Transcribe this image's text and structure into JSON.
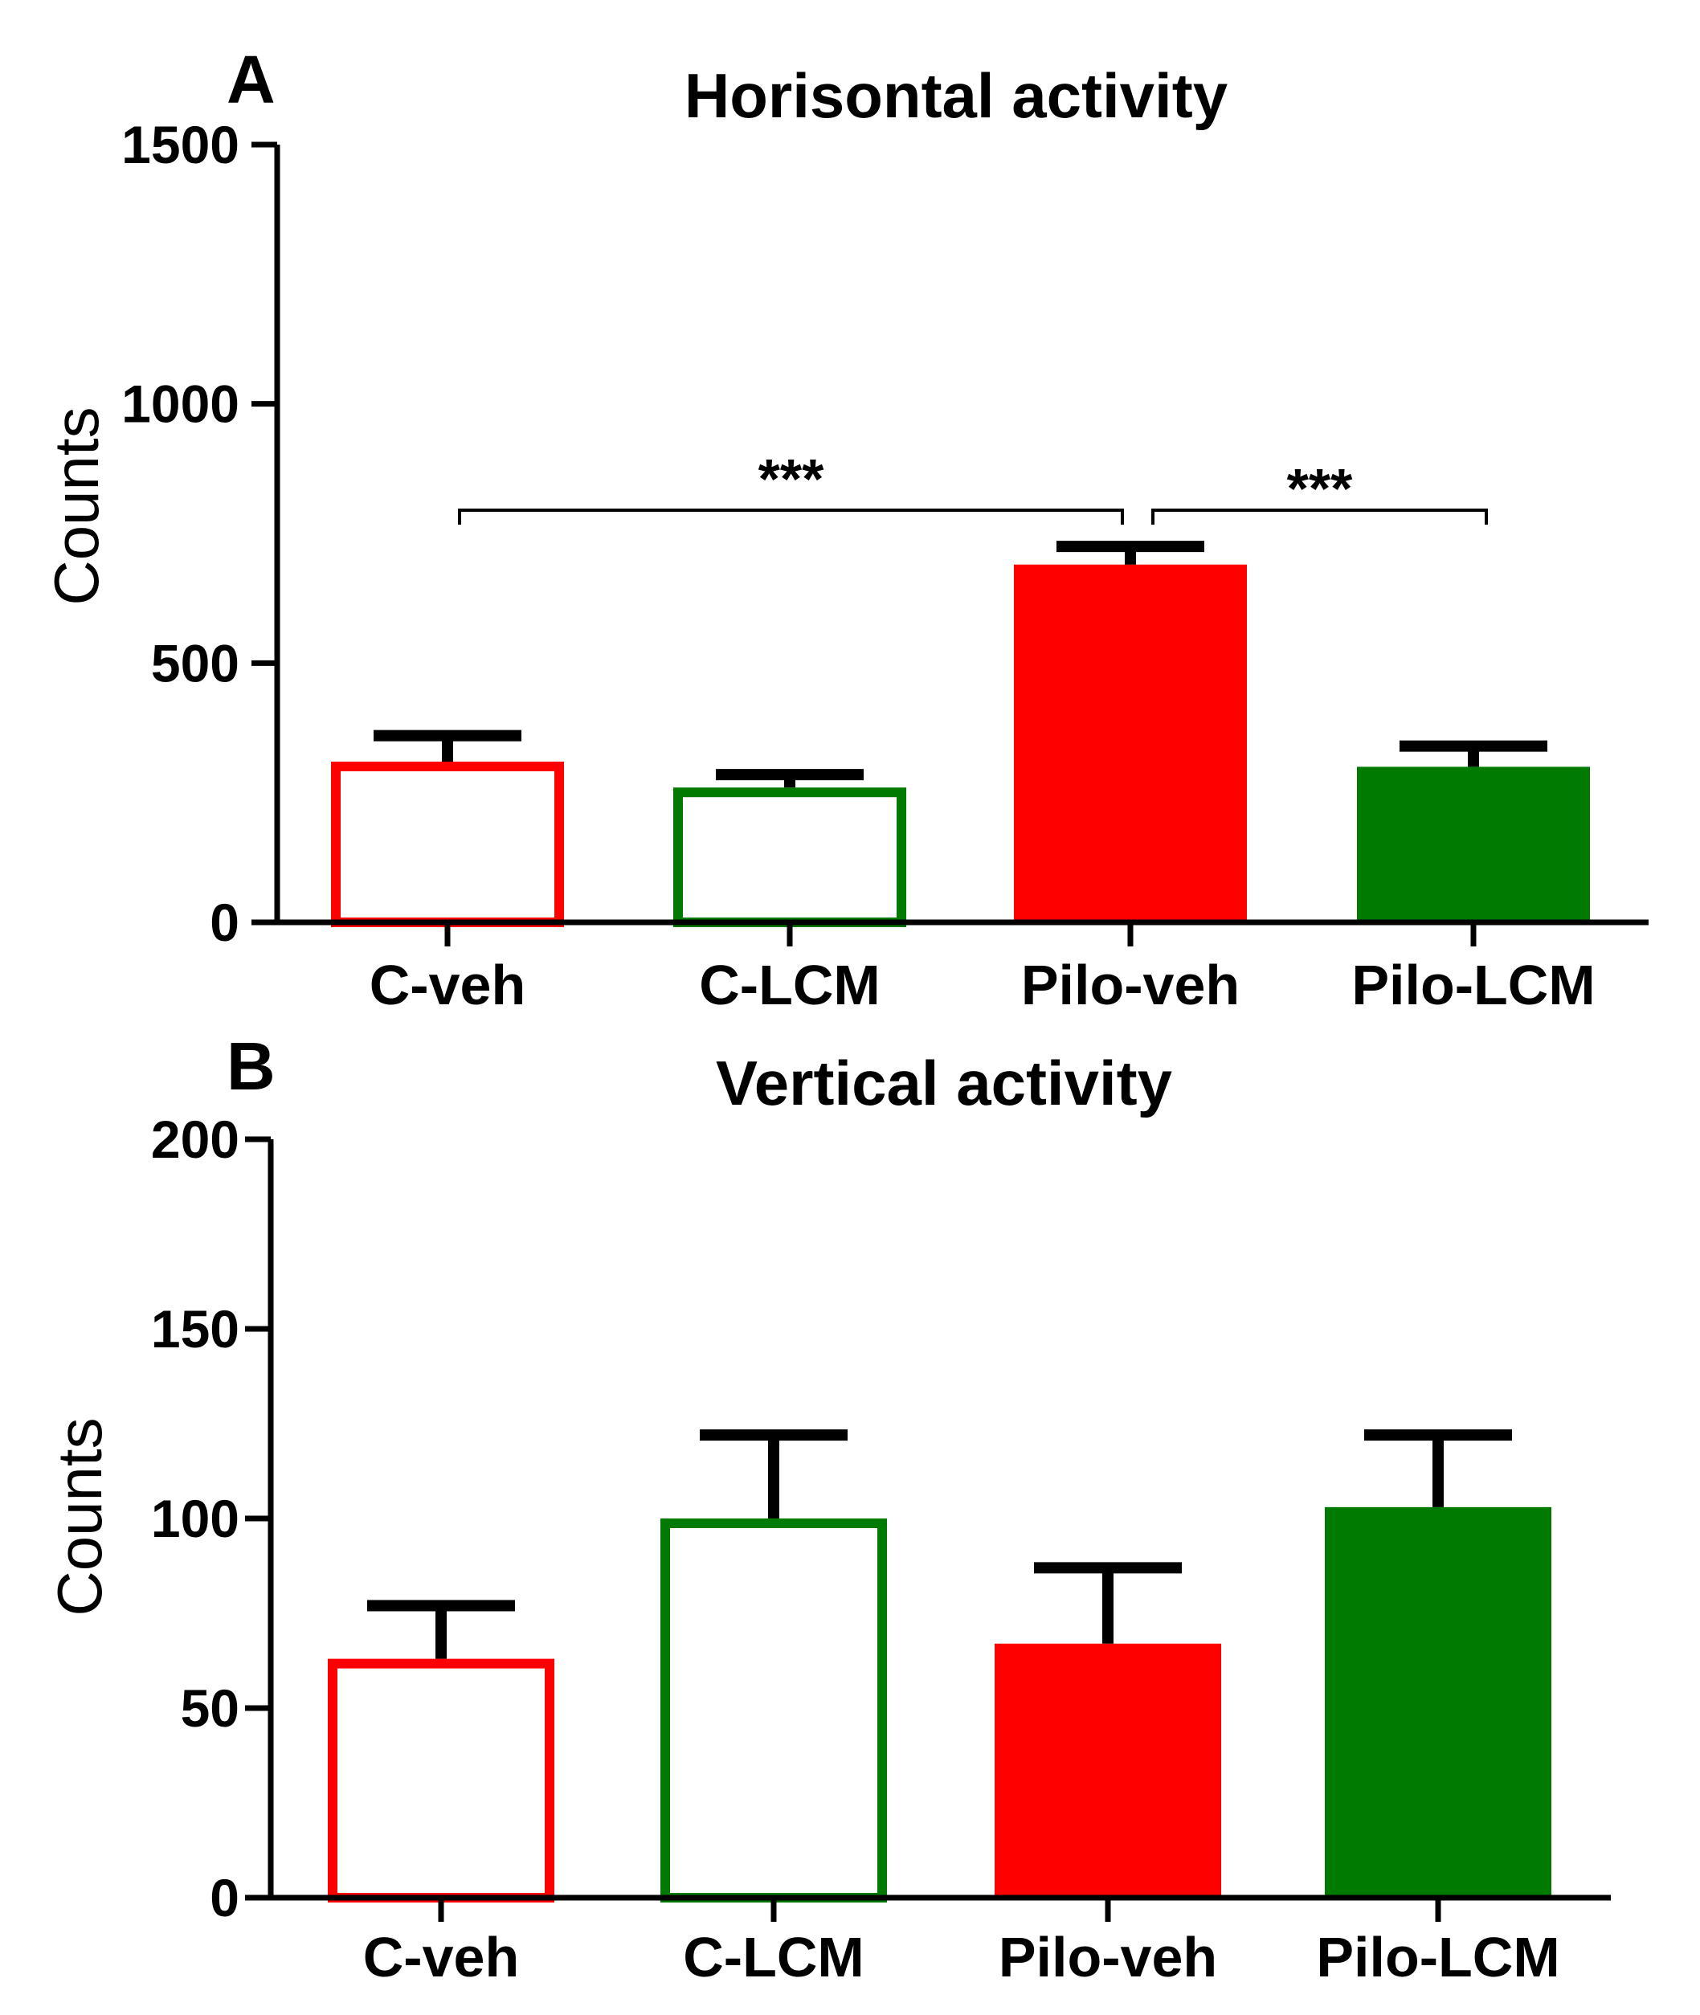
{
  "chart_data": [
    {
      "panel": "A",
      "type": "bar",
      "title": "Horisontal activity",
      "xlabel": "",
      "ylabel": "Counts",
      "ylim": [
        0,
        1500
      ],
      "yticks": [
        0,
        500,
        1000,
        1500
      ],
      "categories": [
        "C-veh",
        "C-LCM",
        "Pilo-veh",
        "Pilo-LCM"
      ],
      "values": [
        310,
        260,
        690,
        300
      ],
      "errors": [
        50,
        25,
        35,
        40
      ],
      "colors": [
        "#ff0000",
        "#007a00",
        "#ff0000",
        "#007a00"
      ],
      "filled": [
        false,
        false,
        true,
        true
      ],
      "significance": [
        {
          "from": 0,
          "to": 2,
          "label": "***"
        },
        {
          "from": 2,
          "to": 3,
          "label": "***"
        }
      ]
    },
    {
      "panel": "B",
      "type": "bar",
      "title": "Vertical activity",
      "xlabel": "",
      "ylabel": "Counts",
      "ylim": [
        0,
        200
      ],
      "yticks": [
        0,
        50,
        100,
        150,
        200
      ],
      "categories": [
        "C-veh",
        "C-LCM",
        "Pilo-veh",
        "Pilo-LCM"
      ],
      "values": [
        63,
        100,
        67,
        103
      ],
      "errors": [
        14,
        22,
        20,
        19
      ],
      "colors": [
        "#ff0000",
        "#007a00",
        "#ff0000",
        "#007a00"
      ],
      "filled": [
        false,
        false,
        true,
        true
      ],
      "significance": []
    }
  ]
}
